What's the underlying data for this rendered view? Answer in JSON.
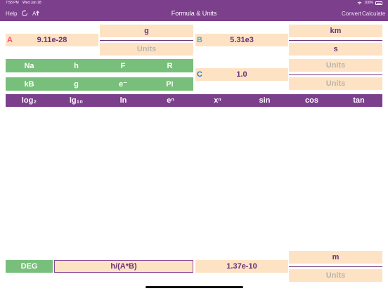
{
  "status": {
    "time": "7:58 PM",
    "date": "Wed Jan 18",
    "battery": "100%"
  },
  "nav": {
    "help": "Help",
    "refresh_icon": "refresh-icon",
    "font_size": "A",
    "title": "Formula & Units",
    "convert": "Convert",
    "calculate": "Calculate"
  },
  "var_a": {
    "label": "A",
    "value": "9.11e-28",
    "unit_num": "g",
    "unit_den": "Units"
  },
  "var_b": {
    "label": "B",
    "value": "5.31e3",
    "unit_num": "km",
    "unit_den": "s"
  },
  "var_c": {
    "label": "C",
    "value": "1.0",
    "unit_num": "Units",
    "unit_den": "Units"
  },
  "constants": {
    "row1": [
      "Na",
      "h",
      "F",
      "R"
    ],
    "row2": [
      "kB",
      "g",
      "e⁻",
      "Pi"
    ]
  },
  "functions": [
    "log₂",
    "lg₁₀",
    "ln",
    "eⁿ",
    "xⁿ",
    "sin",
    "cos",
    "tan"
  ],
  "bottom": {
    "mode": "DEG",
    "formula": "h/(A*B)",
    "result": "1.37e-10",
    "unit_num": "m",
    "unit_den": "Units"
  },
  "colors": {
    "header": "#7c3f8c",
    "peach": "#fde3c4",
    "green": "#78bf7b",
    "label_a": "#f0507a",
    "label_b": "#45b0c8",
    "label_c": "#2a78d6"
  }
}
